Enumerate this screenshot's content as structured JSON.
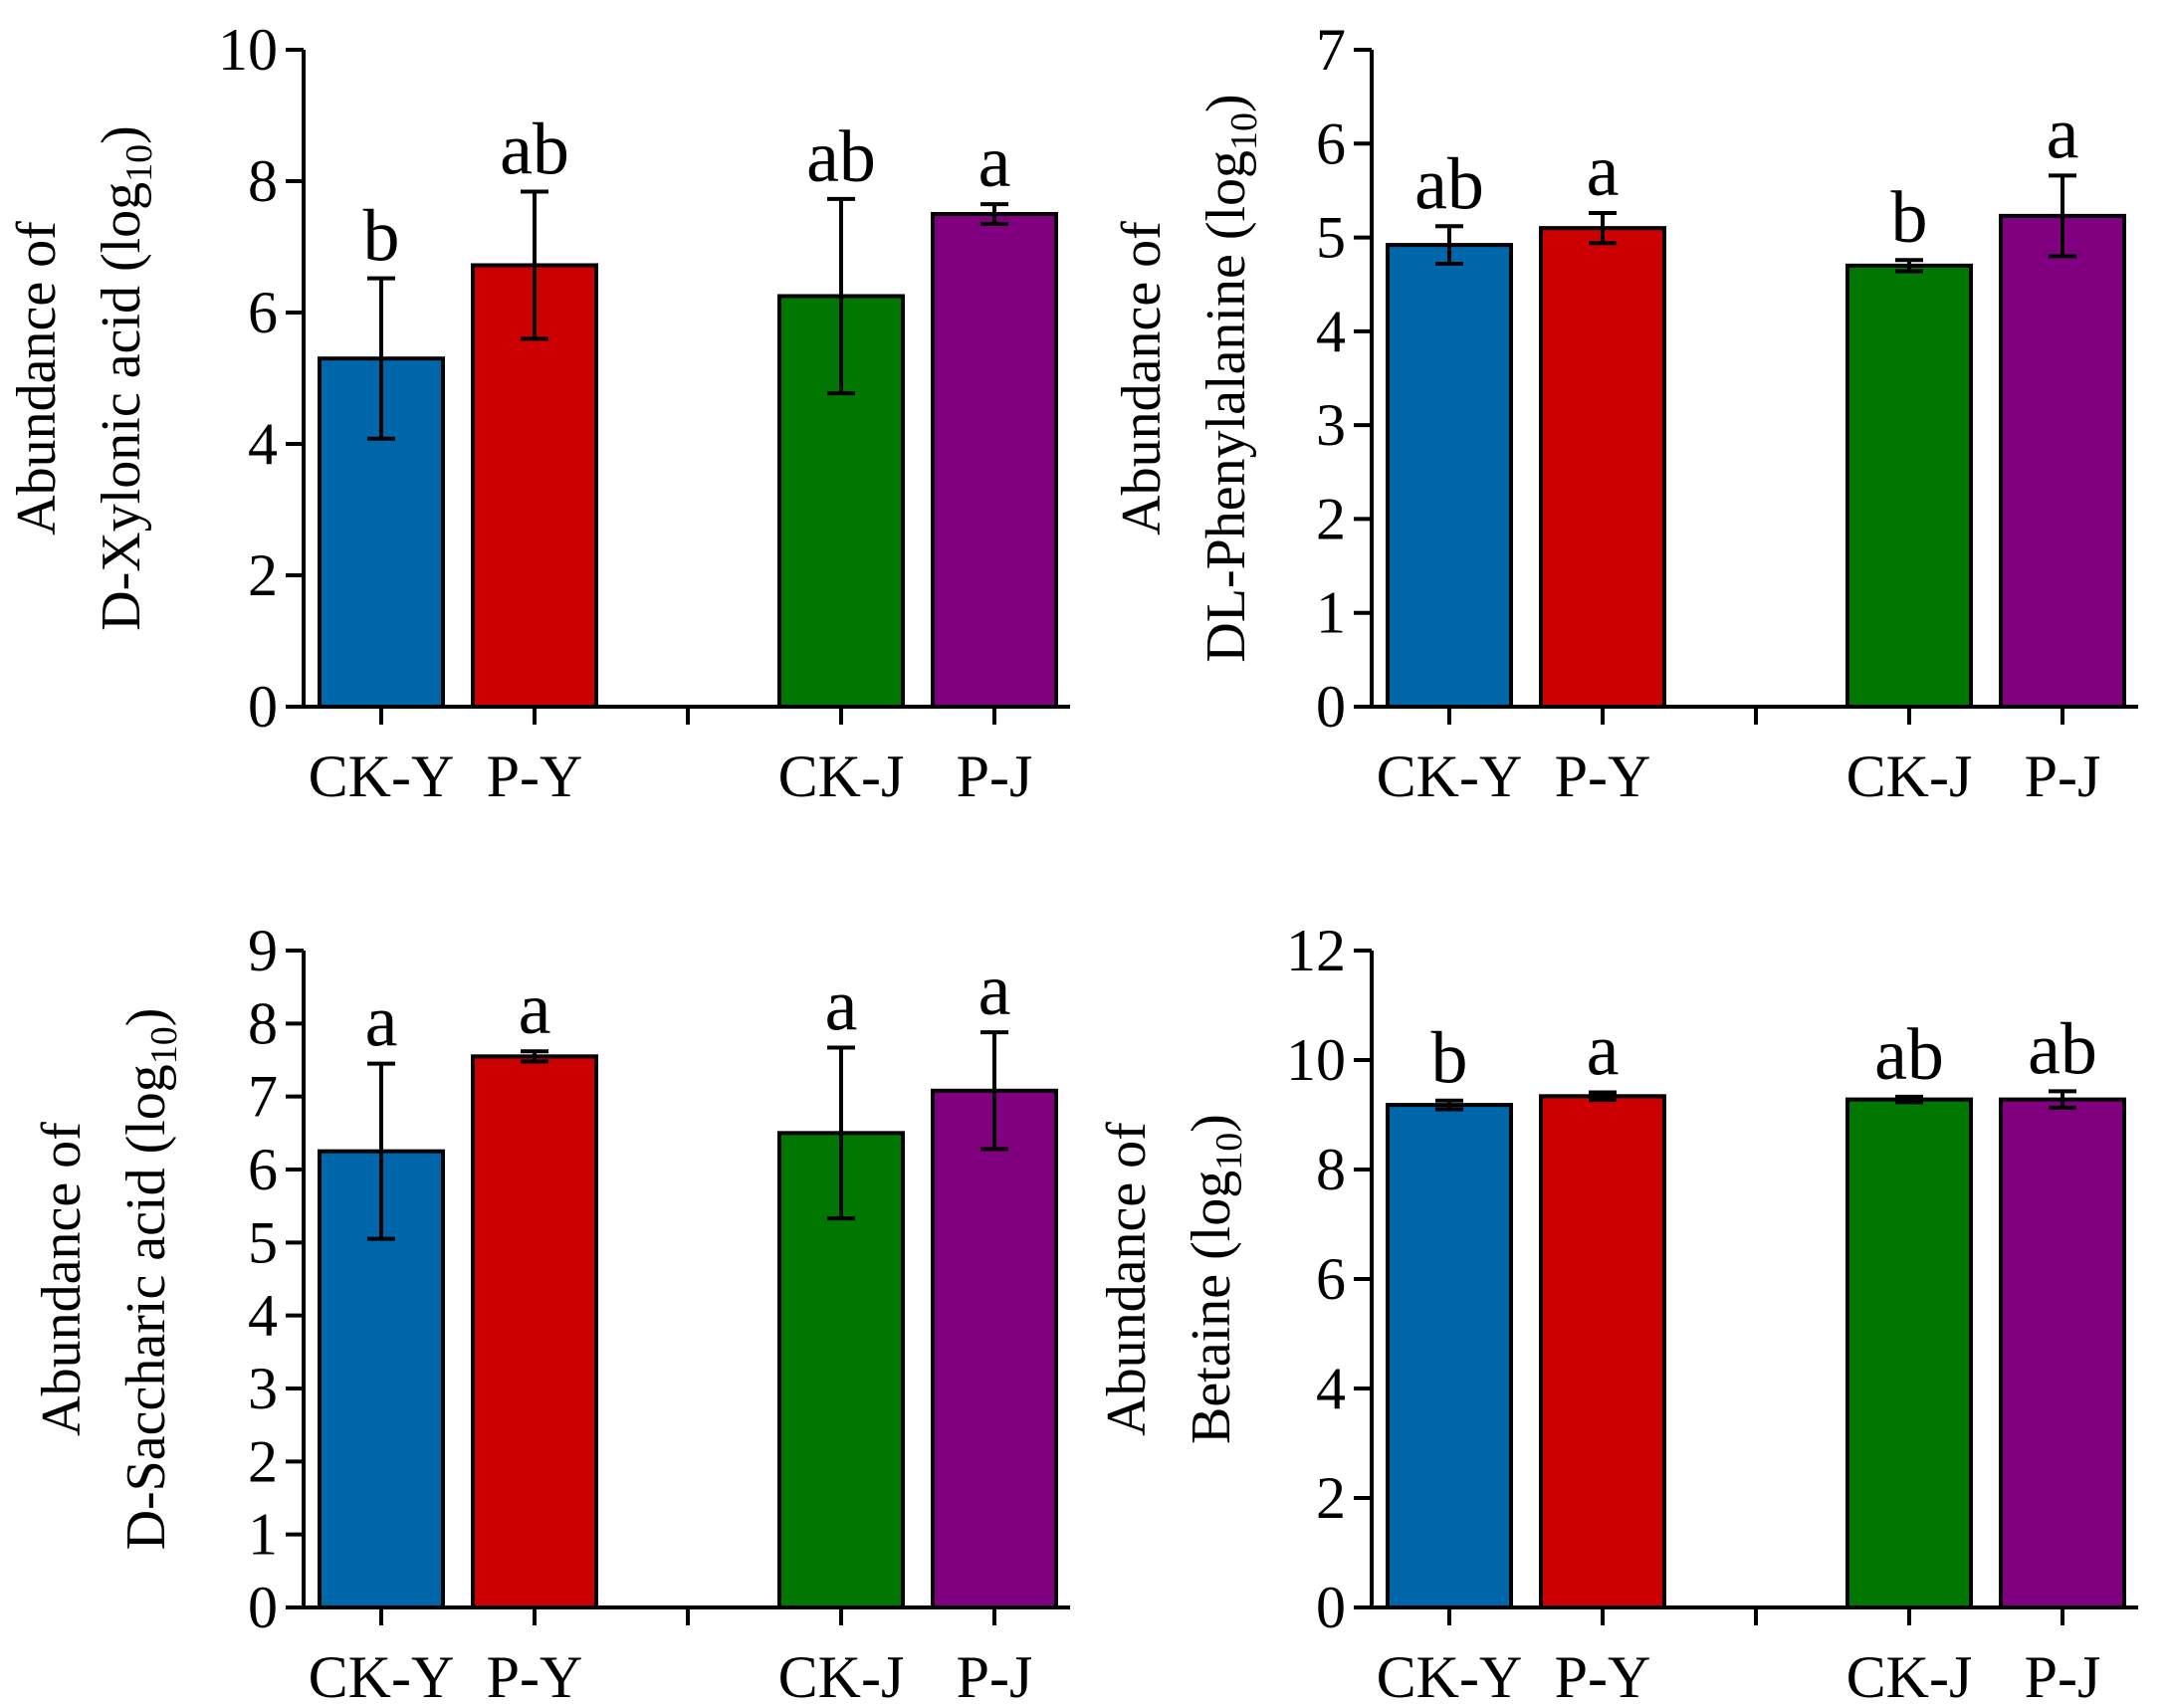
{
  "chart_data": [
    {
      "type": "bar",
      "categories": [
        "CK-Y",
        "P-Y",
        "CK-J",
        "P-J"
      ],
      "values": [
        5.3,
        6.72,
        6.25,
        7.5
      ],
      "errors": [
        1.22,
        1.12,
        1.48,
        0.15
      ],
      "significance": [
        "b",
        "ab",
        "ab",
        "a"
      ],
      "colors": [
        "#0066aa",
        "#cc0000",
        "#007700",
        "#800080"
      ],
      "ylabel_line1": "Abundance of",
      "ylabel_line2": "D-Xylonic acid (log",
      "ylabel_sub": "10",
      "ylabel_close": ")",
      "ylim": [
        0,
        10
      ],
      "yticks": [
        0,
        2,
        4,
        6,
        8,
        10
      ],
      "grid": false,
      "legend": "none"
    },
    {
      "type": "bar",
      "categories": [
        "CK-Y",
        "P-Y",
        "CK-J",
        "P-J"
      ],
      "values": [
        4.92,
        5.1,
        4.7,
        5.23
      ],
      "errors": [
        0.2,
        0.16,
        0.06,
        0.43
      ],
      "significance": [
        "ab",
        "a",
        "b",
        "a"
      ],
      "colors": [
        "#0066aa",
        "#cc0000",
        "#007700",
        "#800080"
      ],
      "ylabel_line1": "Abundance of",
      "ylabel_line2": "DL-Phenylalanine (log",
      "ylabel_sub": "10",
      "ylabel_close": ")",
      "ylim": [
        0,
        7
      ],
      "yticks": [
        0,
        1,
        2,
        3,
        4,
        5,
        6,
        7
      ],
      "grid": false,
      "legend": "none"
    },
    {
      "type": "bar",
      "categories": [
        "CK-Y",
        "P-Y",
        "CK-J",
        "P-J"
      ],
      "values": [
        6.25,
        7.55,
        6.5,
        7.08
      ],
      "errors": [
        1.2,
        0.07,
        1.17,
        0.8
      ],
      "significance": [
        "a",
        "a",
        "a",
        "a"
      ],
      "colors": [
        "#0066aa",
        "#cc0000",
        "#007700",
        "#800080"
      ],
      "ylabel_line1": "Abundance of",
      "ylabel_line2": "D-Saccharic acid  (log",
      "ylabel_sub": "10",
      "ylabel_close": ")",
      "ylim": [
        0,
        9
      ],
      "yticks": [
        0,
        1,
        2,
        3,
        4,
        5,
        6,
        7,
        8,
        9
      ],
      "grid": false,
      "legend": "none"
    },
    {
      "type": "bar",
      "categories": [
        "CK-Y",
        "P-Y",
        "CK-J",
        "P-J"
      ],
      "values": [
        9.18,
        9.34,
        9.28,
        9.28
      ],
      "errors": [
        0.08,
        0.07,
        0.05,
        0.15
      ],
      "significance": [
        "b",
        "a",
        "ab",
        "ab"
      ],
      "colors": [
        "#0066aa",
        "#cc0000",
        "#007700",
        "#800080"
      ],
      "ylabel_line1": "Abundance of",
      "ylabel_line2": "Betaine (log",
      "ylabel_sub": "10",
      "ylabel_close": ")",
      "ylim": [
        0,
        12
      ],
      "yticks": [
        0,
        2,
        4,
        6,
        8,
        10,
        12
      ],
      "grid": false,
      "legend": "none"
    }
  ]
}
